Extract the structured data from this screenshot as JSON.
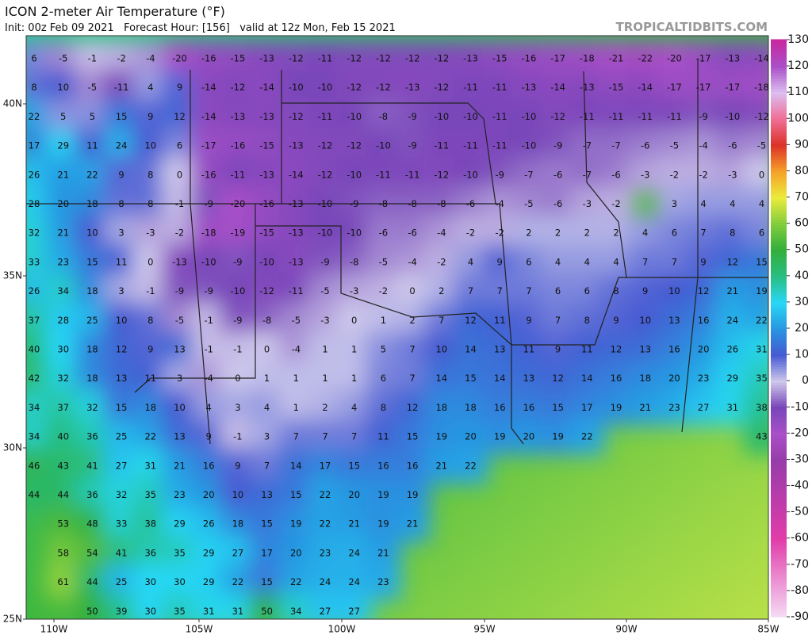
{
  "header": {
    "title": "ICON 2-meter Air Temperature (°F)",
    "subtitle": "Init: 00z Feb 09 2021   Forecast Hour: [156]   valid at 12z Mon, Feb 15 2021",
    "brand": "TROPICALTIDBITS.COM"
  },
  "lat_labels": [
    "40N",
    "35N",
    "30N",
    "25N"
  ],
  "lon_labels": [
    "110W",
    "105W",
    "100W",
    "95W",
    "90W",
    "85W"
  ],
  "colorbar": {
    "ticks": [
      130,
      120,
      110,
      100,
      90,
      80,
      70,
      60,
      50,
      40,
      30,
      20,
      10,
      0,
      -10,
      -20,
      -30,
      -40,
      -50,
      -60,
      -70,
      -80,
      -90
    ]
  },
  "grid": {
    "rows": [
      [
        6,
        -5,
        -1,
        -2,
        -4,
        -20,
        -16,
        -15,
        -13,
        -12,
        -11,
        -12,
        -12,
        -12,
        -12,
        -13,
        -15,
        -16,
        -17,
        -18,
        -21,
        -22,
        -20,
        -17,
        -13,
        -14
      ],
      [
        8,
        10,
        -5,
        -11,
        4,
        9,
        -14,
        -12,
        -14,
        -10,
        -10,
        -12,
        -12,
        -13,
        -12,
        -11,
        -11,
        -13,
        -14,
        -13,
        -15,
        -14,
        -17,
        -17,
        -17,
        -18
      ],
      [
        22,
        5,
        5,
        15,
        9,
        12,
        -14,
        -13,
        -13,
        -12,
        -11,
        -10,
        -8,
        -9,
        -10,
        -10,
        -11,
        -10,
        -12,
        -11,
        -11,
        -11,
        -11,
        -9,
        -10,
        -12
      ],
      [
        17,
        29,
        11,
        24,
        10,
        6,
        -17,
        -16,
        -15,
        -13,
        -12,
        -12,
        -10,
        -9,
        -11,
        -11,
        -11,
        -10,
        -9,
        -7,
        -7,
        -6,
        -5,
        -4,
        -6,
        -5
      ],
      [
        26,
        21,
        22,
        9,
        8,
        0,
        -16,
        -11,
        -13,
        -14,
        -12,
        -10,
        -11,
        -11,
        -12,
        -10,
        -9,
        -7,
        -6,
        -7,
        -6,
        -3,
        -2,
        -2,
        -3,
        0
      ],
      [
        28,
        20,
        18,
        8,
        8,
        -1,
        -9,
        -20,
        -16,
        -13,
        -10,
        -9,
        -8,
        -8,
        -8,
        -6,
        -4,
        -5,
        -6,
        -3,
        -2,
        null,
        3,
        4,
        4,
        4
      ],
      [
        32,
        21,
        10,
        3,
        -3,
        -2,
        -18,
        -19,
        -15,
        -13,
        -10,
        -10,
        -6,
        -6,
        -4,
        -2,
        -2,
        2,
        2,
        2,
        2,
        4,
        6,
        7,
        8,
        6
      ],
      [
        33,
        23,
        15,
        11,
        0,
        -13,
        -10,
        -9,
        -10,
        -13,
        -9,
        -8,
        -5,
        -4,
        -2,
        4,
        9,
        6,
        4,
        4,
        4,
        7,
        7,
        9,
        12,
        15
      ],
      [
        26,
        34,
        18,
        3,
        -1,
        -9,
        -9,
        -10,
        -12,
        -11,
        -5,
        -3,
        -2,
        0,
        2,
        7,
        7,
        7,
        6,
        6,
        8,
        9,
        10,
        12,
        21,
        19
      ],
      [
        37,
        28,
        25,
        10,
        8,
        -5,
        -1,
        -9,
        -8,
        -5,
        -3,
        0,
        1,
        2,
        7,
        12,
        11,
        9,
        7,
        8,
        9,
        10,
        13,
        16,
        24,
        22
      ],
      [
        40,
        30,
        18,
        12,
        9,
        13,
        -1,
        -1,
        0,
        -4,
        1,
        1,
        5,
        7,
        10,
        14,
        13,
        11,
        9,
        11,
        12,
        13,
        16,
        20,
        26,
        31
      ],
      [
        42,
        32,
        18,
        13,
        11,
        3,
        -4,
        0,
        1,
        1,
        1,
        1,
        6,
        7,
        14,
        15,
        14,
        13,
        12,
        14,
        16,
        18,
        20,
        23,
        29,
        35
      ],
      [
        34,
        37,
        32,
        15,
        18,
        10,
        4,
        3,
        4,
        1,
        2,
        4,
        8,
        12,
        18,
        18,
        16,
        16,
        15,
        17,
        19,
        21,
        23,
        27,
        31,
        38
      ],
      [
        34,
        40,
        36,
        25,
        22,
        13,
        9,
        -1,
        3,
        7,
        7,
        7,
        11,
        15,
        19,
        20,
        19,
        20,
        19,
        22,
        null,
        null,
        null,
        null,
        null,
        43
      ],
      [
        46,
        43,
        41,
        27,
        31,
        21,
        16,
        9,
        7,
        14,
        17,
        15,
        16,
        16,
        21,
        22,
        null,
        null,
        null,
        null,
        null,
        null,
        null,
        null,
        null,
        null
      ],
      [
        44,
        44,
        36,
        32,
        35,
        23,
        20,
        10,
        13,
        15,
        22,
        20,
        19,
        19,
        null,
        null,
        null,
        null,
        null,
        null,
        null,
        null,
        null,
        null,
        null,
        null
      ],
      [
        null,
        53,
        48,
        33,
        38,
        29,
        26,
        18,
        15,
        19,
        22,
        21,
        19,
        21,
        null,
        null,
        null,
        null,
        null,
        null,
        null,
        null,
        null,
        null,
        null,
        null
      ],
      [
        null,
        58,
        54,
        41,
        36,
        35,
        29,
        27,
        17,
        20,
        23,
        24,
        21,
        null,
        null,
        null,
        null,
        null,
        null,
        null,
        null,
        null,
        null,
        null,
        null,
        null
      ],
      [
        null,
        61,
        44,
        25,
        30,
        30,
        29,
        22,
        15,
        22,
        24,
        24,
        23,
        null,
        null,
        null,
        null,
        null,
        null,
        null,
        null,
        null,
        null,
        null,
        null,
        null
      ],
      [
        null,
        null,
        50,
        39,
        30,
        35,
        31,
        31,
        50,
        34,
        27,
        27,
        null,
        null,
        null,
        null,
        null,
        null,
        null,
        null,
        null,
        null,
        null,
        null,
        null,
        null
      ]
    ]
  }
}
